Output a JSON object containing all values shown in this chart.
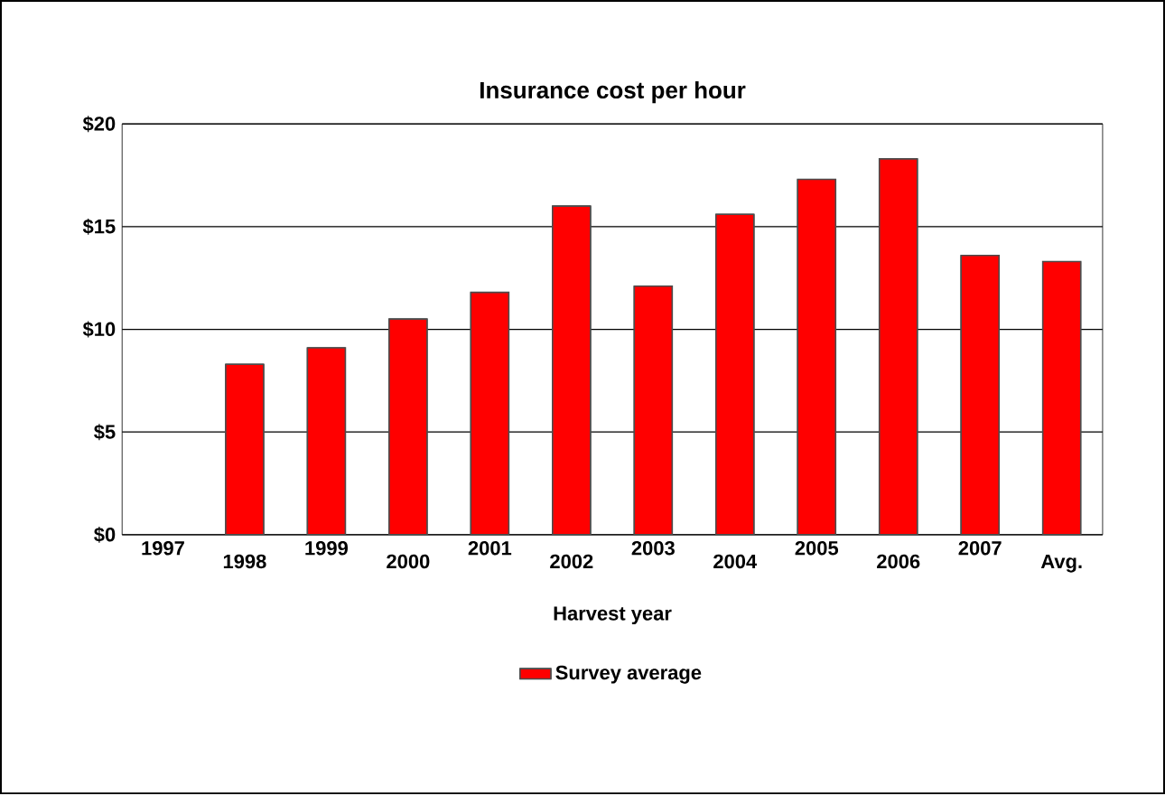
{
  "chart_data": {
    "type": "bar",
    "title": "Insurance cost per hour",
    "xlabel": "Harvest year",
    "categories": [
      "1997",
      "1998",
      "1999",
      "2000",
      "2001",
      "2002",
      "2003",
      "2004",
      "2005",
      "2006",
      "2007",
      "Avg."
    ],
    "series": [
      {
        "name": "Survey average",
        "color": "#ff0000",
        "values": [
          null,
          8.3,
          9.1,
          10.5,
          11.8,
          16.0,
          12.1,
          15.6,
          17.3,
          18.3,
          13.6,
          13.3
        ]
      }
    ],
    "ylim": [
      0,
      20
    ],
    "yticks": [
      {
        "value": 0,
        "label": "$0"
      },
      {
        "value": 5,
        "label": "$5"
      },
      {
        "value": 10,
        "label": "$10"
      },
      {
        "value": 15,
        "label": "$15"
      },
      {
        "value": 20,
        "label": "$20"
      }
    ],
    "grid": "y",
    "legend": "bottom"
  }
}
